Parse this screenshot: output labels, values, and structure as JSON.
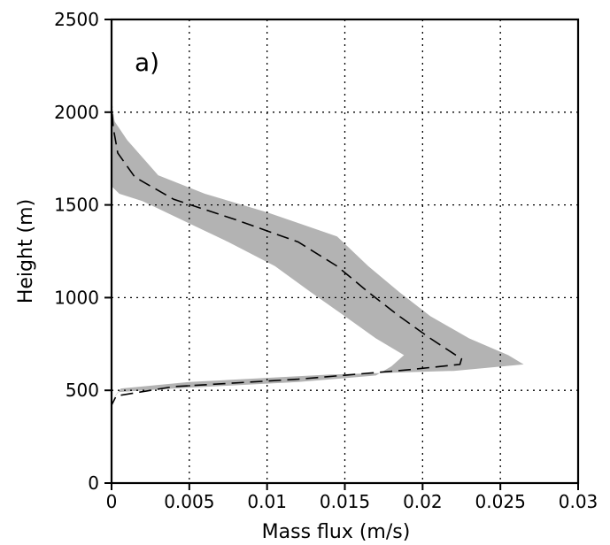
{
  "chart_data": {
    "type": "line",
    "panel_label": "a)",
    "xlabel": "Mass flux (m/s)",
    "ylabel": "Height (m)",
    "xlim": [
      0,
      0.03
    ],
    "ylim": [
      0,
      2500
    ],
    "x_ticks": [
      0,
      0.005,
      0.01,
      0.015,
      0.02,
      0.025,
      0.03
    ],
    "x_tick_labels": [
      "0",
      "0.005",
      "0.01",
      "0.015",
      "0.02",
      "0.025",
      "0.03"
    ],
    "y_ticks": [
      0,
      500,
      1000,
      1500,
      2000,
      2500
    ],
    "y_tick_labels": [
      "0",
      "500",
      "1000",
      "1500",
      "2000",
      "2500"
    ],
    "grid": true,
    "grid_style": "dotted",
    "colors": {
      "mean_line": "#000000",
      "spread_band": "#b3b3b3",
      "grid": "#000000"
    },
    "series": [
      {
        "style": "dashed",
        "points": [
          {
            "x": 0,
            "y": 0
          },
          {
            "x": 0,
            "y": 420
          },
          {
            "x": 0.0003,
            "y": 470
          },
          {
            "x": 0.004,
            "y": 520
          },
          {
            "x": 0.012,
            "y": 560
          },
          {
            "x": 0.019,
            "y": 610
          },
          {
            "x": 0.0224,
            "y": 640
          },
          {
            "x": 0.0225,
            "y": 670
          },
          {
            "x": 0.0205,
            "y": 780
          },
          {
            "x": 0.0185,
            "y": 900
          },
          {
            "x": 0.0165,
            "y": 1030
          },
          {
            "x": 0.0145,
            "y": 1170
          },
          {
            "x": 0.012,
            "y": 1300
          },
          {
            "x": 0.008,
            "y": 1420
          },
          {
            "x": 0.004,
            "y": 1530
          },
          {
            "x": 0.0015,
            "y": 1650
          },
          {
            "x": 0.0004,
            "y": 1780
          },
          {
            "x": 0.0001,
            "y": 1920
          },
          {
            "x": 0,
            "y": 2050
          },
          {
            "x": 0,
            "y": 2500
          }
        ]
      }
    ],
    "spread_band": {
      "style": "filled",
      "upper": [
        {
          "x": 0,
          "y": 0
        },
        {
          "x": 0,
          "y": 440
        },
        {
          "x": 0.0006,
          "y": 510
        },
        {
          "x": 0.005,
          "y": 545
        },
        {
          "x": 0.014,
          "y": 585
        },
        {
          "x": 0.022,
          "y": 605
        },
        {
          "x": 0.0265,
          "y": 640
        },
        {
          "x": 0.0255,
          "y": 690
        },
        {
          "x": 0.023,
          "y": 780
        },
        {
          "x": 0.0205,
          "y": 900
        },
        {
          "x": 0.0185,
          "y": 1030
        },
        {
          "x": 0.0165,
          "y": 1170
        },
        {
          "x": 0.0145,
          "y": 1330
        },
        {
          "x": 0.01,
          "y": 1460
        },
        {
          "x": 0.006,
          "y": 1560
        },
        {
          "x": 0.003,
          "y": 1660
        },
        {
          "x": 0.001,
          "y": 1850
        },
        {
          "x": 0.0002,
          "y": 1950
        },
        {
          "x": 0,
          "y": 2050
        },
        {
          "x": 0,
          "y": 2500
        }
      ],
      "lower": [
        {
          "x": 0,
          "y": 0
        },
        {
          "x": 0,
          "y": 440
        },
        {
          "x": 0.0004,
          "y": 490
        },
        {
          "x": 0.004,
          "y": 510
        },
        {
          "x": 0.012,
          "y": 545
        },
        {
          "x": 0.017,
          "y": 580
        },
        {
          "x": 0.018,
          "y": 630
        },
        {
          "x": 0.0188,
          "y": 690
        },
        {
          "x": 0.017,
          "y": 780
        },
        {
          "x": 0.015,
          "y": 900
        },
        {
          "x": 0.0128,
          "y": 1030
        },
        {
          "x": 0.0105,
          "y": 1170
        },
        {
          "x": 0.0075,
          "y": 1300
        },
        {
          "x": 0.0045,
          "y": 1420
        },
        {
          "x": 0.002,
          "y": 1520
        },
        {
          "x": 0.0005,
          "y": 1560
        },
        {
          "x": 0,
          "y": 1600
        },
        {
          "x": 0,
          "y": 2500
        }
      ]
    }
  }
}
